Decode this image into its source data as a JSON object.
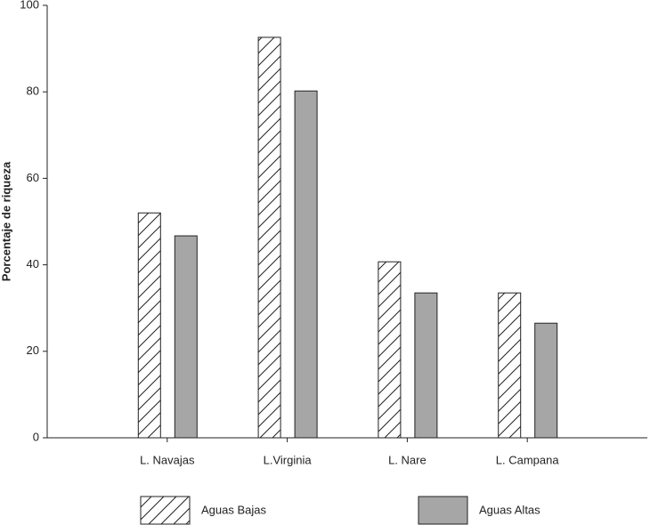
{
  "chart_data": {
    "type": "bar",
    "y_label": "Porcentaje de riqueza",
    "categories": [
      "L. Navajas",
      "L.Virginia",
      "L. Nare",
      "L. Campana"
    ],
    "series": [
      {
        "name": "Aguas Bajas",
        "color": "#ffffff",
        "hatch": true,
        "values": [
          52,
          92.6,
          40.7,
          33.5
        ]
      },
      {
        "name": "Aguas Altas",
        "color": "#a6a6a6",
        "hatch": false,
        "values": [
          46.7,
          80.2,
          33.5,
          26.5
        ]
      }
    ],
    "ylim": [
      0,
      100
    ],
    "yticks": [
      0,
      20,
      40,
      60,
      80,
      100
    ],
    "grid": false
  }
}
